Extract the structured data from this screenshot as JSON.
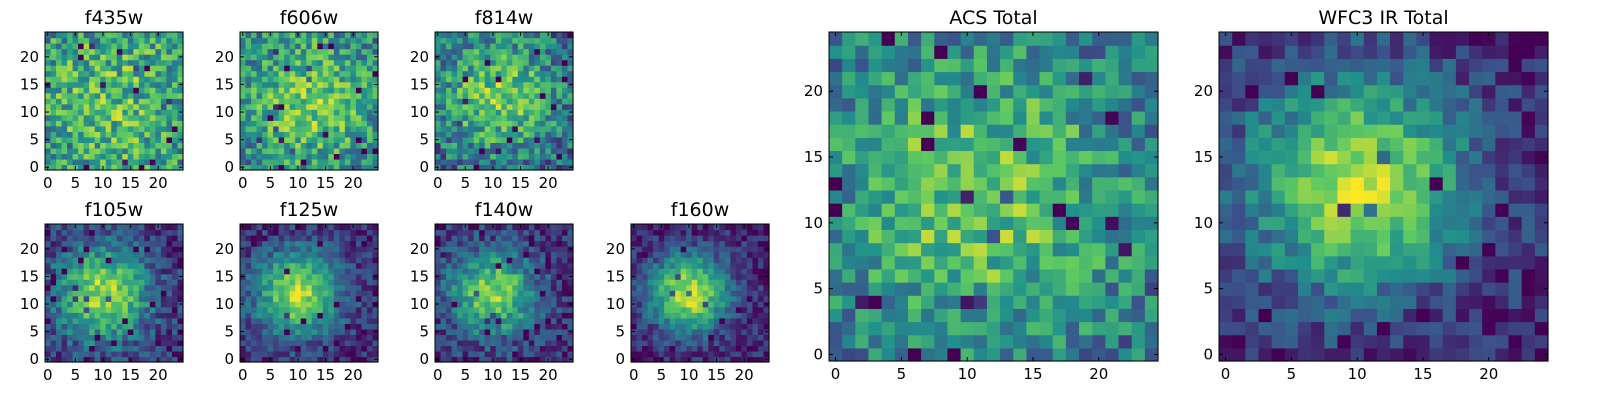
{
  "chart_data": [
    {
      "type": "heatmap",
      "title": "f435w",
      "xticks": [
        0,
        5,
        10,
        15,
        20
      ],
      "yticks": [
        0,
        5,
        10,
        15,
        20
      ],
      "xlim": [
        0,
        24
      ],
      "ylim": [
        0,
        24
      ],
      "colormap": "viridis",
      "grid": false
    },
    {
      "type": "heatmap",
      "title": "f606w",
      "xticks": [
        0,
        5,
        10,
        15,
        20
      ],
      "yticks": [
        0,
        5,
        10,
        15,
        20
      ],
      "xlim": [
        0,
        24
      ],
      "ylim": [
        0,
        24
      ],
      "colormap": "viridis",
      "grid": false
    },
    {
      "type": "heatmap",
      "title": "f814w",
      "xticks": [
        0,
        5,
        10,
        15,
        20
      ],
      "yticks": [
        0,
        5,
        10,
        15,
        20
      ],
      "xlim": [
        0,
        24
      ],
      "ylim": [
        0,
        24
      ],
      "colormap": "viridis",
      "grid": false
    },
    {
      "type": "heatmap",
      "title": "f105w",
      "xticks": [
        0,
        5,
        10,
        15,
        20
      ],
      "yticks": [
        0,
        5,
        10,
        15,
        20
      ],
      "xlim": [
        0,
        24
      ],
      "ylim": [
        0,
        24
      ],
      "colormap": "viridis",
      "grid": false
    },
    {
      "type": "heatmap",
      "title": "f125w",
      "xticks": [
        0,
        5,
        10,
        15,
        20
      ],
      "yticks": [
        0,
        5,
        10,
        15,
        20
      ],
      "xlim": [
        0,
        24
      ],
      "ylim": [
        0,
        24
      ],
      "colormap": "viridis",
      "grid": false
    },
    {
      "type": "heatmap",
      "title": "f140w",
      "xticks": [
        0,
        5,
        10,
        15,
        20
      ],
      "yticks": [
        0,
        5,
        10,
        15,
        20
      ],
      "xlim": [
        0,
        24
      ],
      "ylim": [
        0,
        24
      ],
      "colormap": "viridis",
      "grid": false
    },
    {
      "type": "heatmap",
      "title": "f160w",
      "xticks": [
        0,
        5,
        10,
        15,
        20
      ],
      "yticks": [
        0,
        5,
        10,
        15,
        20
      ],
      "xlim": [
        0,
        24
      ],
      "ylim": [
        0,
        24
      ],
      "colormap": "viridis",
      "grid": false
    },
    {
      "type": "heatmap",
      "title": "ACS Total",
      "xticks": [
        0,
        5,
        10,
        15,
        20
      ],
      "yticks": [
        0,
        5,
        10,
        15,
        20
      ],
      "xlim": [
        0,
        24
      ],
      "ylim": [
        0,
        24
      ],
      "colormap": "viridis",
      "grid": false
    },
    {
      "type": "heatmap",
      "title": "WFC3 IR Total",
      "xticks": [
        0,
        5,
        10,
        15,
        20
      ],
      "yticks": [
        0,
        5,
        10,
        15,
        20
      ],
      "xlim": [
        0,
        24
      ],
      "ylim": [
        0,
        24
      ],
      "colormap": "viridis",
      "grid": false
    }
  ]
}
